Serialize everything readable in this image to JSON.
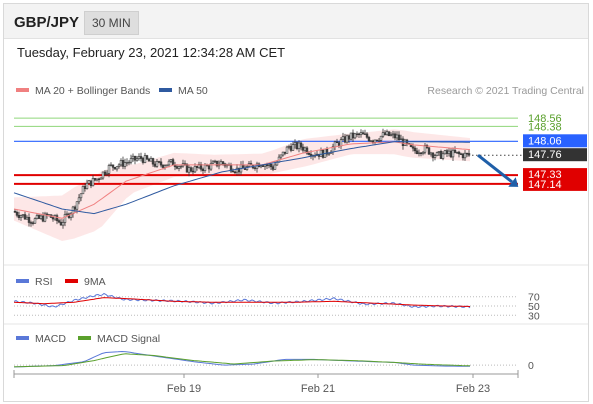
{
  "header": {
    "symbol": "GBP/JPY",
    "timeframe": "30 MIN",
    "timestamp": "Tuesday, February 23, 2021 12:34:28 AM CET"
  },
  "legend": {
    "ma20_label": "MA 20 + Bollinger Bands",
    "ma20_color": "#f08080",
    "ma50_label": "MA 50",
    "ma50_color": "#2f5aa0",
    "credit": "Research © 2021 Trading Central"
  },
  "colors": {
    "bullish_candle": "#ffffff",
    "bearish_candle": "#444444",
    "target_level": "#5aa02c",
    "pivot_level": "#2962ff",
    "support_level": "#e00000",
    "last_price": "#333333",
    "rsi": "#5a78d8",
    "rsi_ma": "#e00000",
    "macd": "#5a78d8",
    "macd_signal": "#5aa02c",
    "forecast_arrow": "#1f5fa8"
  },
  "chart_data": [
    {
      "type": "candlestick",
      "title": "GBP/JPY 30 MIN",
      "x_tick_labels": [
        "Feb 19",
        "Feb 21",
        "Feb 23"
      ],
      "ylim": [
        145.5,
        148.95
      ],
      "levels": [
        {
          "label": "148.56",
          "value": 148.56,
          "kind": "resistance-target"
        },
        {
          "label": "148.38",
          "value": 148.38,
          "kind": "resistance-target"
        },
        {
          "label": "148.06",
          "value": 148.06,
          "kind": "pivot"
        },
        {
          "label": "147.76",
          "value": 147.76,
          "kind": "last-price"
        },
        {
          "label": "147.33",
          "value": 147.33,
          "kind": "support"
        },
        {
          "label": "147.14",
          "value": 147.14,
          "kind": "support"
        }
      ],
      "forecast": {
        "direction": "down",
        "from": 147.76,
        "to": 147.14
      },
      "close_path": [
        [
          0,
          146.55
        ],
        [
          10,
          146.35
        ],
        [
          18,
          146.45
        ],
        [
          24,
          146.3
        ],
        [
          30,
          146.6
        ],
        [
          36,
          147.1
        ],
        [
          42,
          147.25
        ],
        [
          48,
          147.5
        ],
        [
          56,
          147.6
        ],
        [
          64,
          147.7
        ],
        [
          72,
          147.55
        ],
        [
          80,
          147.6
        ],
        [
          88,
          147.45
        ],
        [
          96,
          147.5
        ],
        [
          104,
          147.6
        ],
        [
          112,
          147.45
        ],
        [
          118,
          147.5
        ],
        [
          124,
          147.6
        ],
        [
          130,
          147.5
        ],
        [
          138,
          147.95
        ],
        [
          144,
          147.95
        ],
        [
          150,
          147.8
        ],
        [
          156,
          147.8
        ],
        [
          162,
          148.0
        ],
        [
          168,
          148.15
        ],
        [
          174,
          148.2
        ],
        [
          180,
          148.1
        ],
        [
          186,
          148.2
        ],
        [
          192,
          148.15
        ],
        [
          196,
          148.0
        ],
        [
          200,
          147.85
        ],
        [
          206,
          147.9
        ],
        [
          212,
          147.75
        ],
        [
          218,
          147.8
        ],
        [
          224,
          147.77
        ],
        [
          228,
          147.76
        ]
      ],
      "ma20_path": [
        [
          0,
          146.6
        ],
        [
          24,
          146.4
        ],
        [
          40,
          146.7
        ],
        [
          56,
          147.2
        ],
        [
          80,
          147.55
        ],
        [
          104,
          147.55
        ],
        [
          124,
          147.55
        ],
        [
          144,
          147.8
        ],
        [
          168,
          148.0
        ],
        [
          190,
          148.05
        ],
        [
          200,
          147.98
        ],
        [
          228,
          147.88
        ]
      ],
      "ma50_path": [
        [
          0,
          146.95
        ],
        [
          24,
          146.6
        ],
        [
          40,
          146.5
        ],
        [
          56,
          146.7
        ],
        [
          80,
          147.1
        ],
        [
          104,
          147.4
        ],
        [
          124,
          147.55
        ],
        [
          144,
          147.7
        ],
        [
          168,
          147.9
        ],
        [
          190,
          148.05
        ],
        [
          200,
          148.05
        ],
        [
          228,
          148.04
        ]
      ],
      "bollinger_halfwidth": [
        [
          0,
          0.25
        ],
        [
          30,
          0.55
        ],
        [
          44,
          0.6
        ],
        [
          60,
          0.3
        ],
        [
          100,
          0.22
        ],
        [
          130,
          0.25
        ],
        [
          145,
          0.3
        ],
        [
          170,
          0.22
        ],
        [
          195,
          0.28
        ],
        [
          228,
          0.25
        ]
      ],
      "legend": [
        "MA 20 + Bollinger Bands",
        "MA 50"
      ]
    },
    {
      "type": "line",
      "title": "RSI",
      "legend": [
        "RSI",
        "9MA"
      ],
      "levels": [
        70,
        50,
        30
      ],
      "y_tick_labels": [
        "70",
        "50",
        "30"
      ],
      "ylim": [
        20,
        80
      ],
      "series": [
        {
          "name": "RSI",
          "values": [
            [
              0,
              60
            ],
            [
              10,
              56
            ],
            [
              20,
              48
            ],
            [
              30,
              62
            ],
            [
              40,
              72
            ],
            [
              45,
              75
            ],
            [
              55,
              64
            ],
            [
              70,
              62
            ],
            [
              85,
              60
            ],
            [
              100,
              56
            ],
            [
              115,
              63
            ],
            [
              130,
              56
            ],
            [
              145,
              60
            ],
            [
              160,
              66
            ],
            [
              175,
              54
            ],
            [
              190,
              56
            ],
            [
              200,
              48
            ],
            [
              212,
              50
            ],
            [
              228,
              48
            ]
          ]
        },
        {
          "name": "9MA",
          "values": [
            [
              0,
              58
            ],
            [
              15,
              55
            ],
            [
              30,
              58
            ],
            [
              45,
              68
            ],
            [
              60,
              65
            ],
            [
              80,
              60
            ],
            [
              100,
              58
            ],
            [
              120,
              58
            ],
            [
              140,
              58
            ],
            [
              160,
              60
            ],
            [
              180,
              56
            ],
            [
              200,
              52
            ],
            [
              215,
              50
            ],
            [
              228,
              49
            ]
          ]
        }
      ]
    },
    {
      "type": "line",
      "title": "MACD",
      "legend": [
        "MACD",
        "MACD Signal"
      ],
      "y_tick_labels": [
        "0"
      ],
      "ylim": [
        -0.3,
        0.75
      ],
      "series": [
        {
          "name": "MACD",
          "values": [
            [
              0,
              -0.08
            ],
            [
              20,
              -0.02
            ],
            [
              35,
              0.15
            ],
            [
              45,
              0.55
            ],
            [
              55,
              0.6
            ],
            [
              70,
              0.4
            ],
            [
              90,
              0.15
            ],
            [
              105,
              0.0
            ],
            [
              120,
              0.05
            ],
            [
              135,
              0.25
            ],
            [
              150,
              0.25
            ],
            [
              170,
              0.18
            ],
            [
              190,
              0.12
            ],
            [
              200,
              0.0
            ],
            [
              215,
              -0.04
            ],
            [
              228,
              -0.05
            ]
          ]
        },
        {
          "name": "MACD Signal",
          "values": [
            [
              0,
              -0.07
            ],
            [
              25,
              -0.02
            ],
            [
              40,
              0.2
            ],
            [
              55,
              0.5
            ],
            [
              70,
              0.42
            ],
            [
              90,
              0.2
            ],
            [
              110,
              0.05
            ],
            [
              130,
              0.18
            ],
            [
              150,
              0.24
            ],
            [
              170,
              0.2
            ],
            [
              190,
              0.12
            ],
            [
              205,
              0.04
            ],
            [
              228,
              -0.03
            ]
          ]
        }
      ]
    }
  ]
}
